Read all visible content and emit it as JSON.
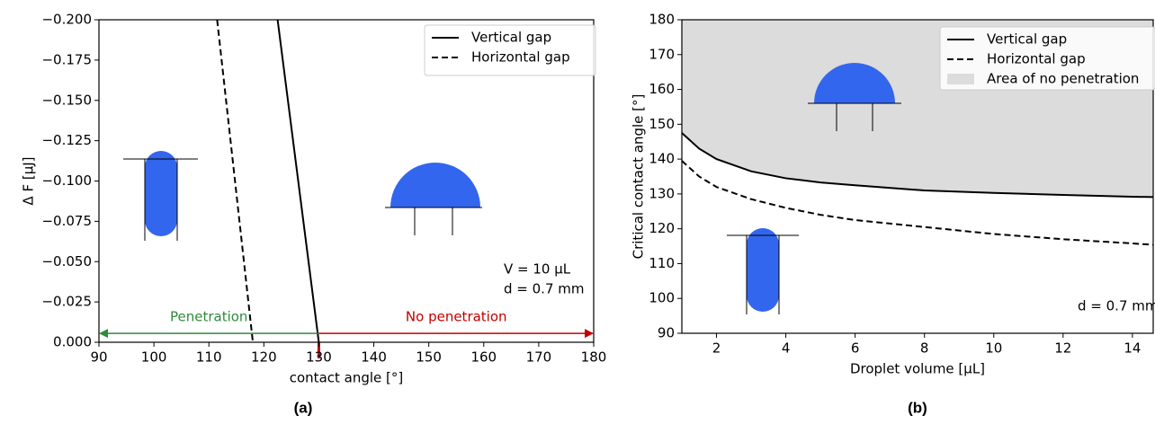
{
  "chart_data": [
    {
      "type": "line",
      "caption": "(a)",
      "xlabel": "contact angle [°]",
      "ylabel": "Δ F [μJ]",
      "xlim": [
        90,
        180
      ],
      "xticks": [
        90,
        100,
        110,
        120,
        130,
        140,
        150,
        160,
        170,
        180
      ],
      "ylim": [
        0,
        -0.2
      ],
      "yticks": [
        {
          "value": 0,
          "label": "0.000"
        },
        {
          "value": -0.025,
          "label": "−0.025"
        },
        {
          "value": -0.05,
          "label": "−0.050"
        },
        {
          "value": -0.075,
          "label": "−0.075"
        },
        {
          "value": -0.1,
          "label": "−0.100"
        },
        {
          "value": -0.125,
          "label": "−0.125"
        },
        {
          "value": -0.15,
          "label": "−0.150"
        },
        {
          "value": -0.175,
          "label": "−0.175"
        },
        {
          "value": -0.2,
          "label": "−0.200"
        }
      ],
      "series": [
        {
          "name": "Vertical gap",
          "color": "#000000",
          "dash": "solid",
          "x": [
            122.5,
            130
          ],
          "values": [
            -0.2,
            0
          ]
        },
        {
          "name": "Horizontal gap",
          "color": "#000000",
          "dash": "dashed",
          "x": [
            111.5,
            118
          ],
          "values": [
            -0.2,
            0
          ]
        }
      ],
      "arrows": [
        {
          "label": "Penetration",
          "color": "#2e8b3a",
          "from": 130,
          "to": 90,
          "y": -0.0055
        },
        {
          "label": "No penetration",
          "color": "#c00000",
          "from": 130,
          "to": 180,
          "y": -0.0055
        }
      ],
      "annotations": [
        "V = 10 μL",
        "d = 0.7 mm"
      ],
      "legend": "upper right"
    },
    {
      "type": "line",
      "caption": "(b)",
      "xlabel": "Droplet volume [μL]",
      "ylabel": "Critical contact angle [°]",
      "xlim": [
        1,
        14.6
      ],
      "xticks": [
        2,
        4,
        6,
        8,
        10,
        12,
        14
      ],
      "ylim": [
        90,
        180
      ],
      "yticks": [
        90,
        100,
        110,
        120,
        130,
        140,
        150,
        160,
        170,
        180
      ],
      "series": [
        {
          "name": "Vertical gap",
          "color": "#000000",
          "dash": "solid",
          "x": [
            1,
            1.5,
            2,
            3,
            4,
            5,
            6,
            8,
            10,
            12,
            14,
            14.6
          ],
          "values": [
            147.5,
            143,
            140,
            136.5,
            134.5,
            133.3,
            132.5,
            131,
            130.3,
            129.7,
            129.2,
            129.1
          ]
        },
        {
          "name": "Horizontal gap",
          "color": "#000000",
          "dash": "dashed",
          "x": [
            1,
            1.5,
            2,
            3,
            4,
            5,
            6,
            8,
            10,
            12,
            14,
            14.6
          ],
          "values": [
            139.5,
            135,
            132,
            128.5,
            126,
            124,
            122.5,
            120.5,
            118.5,
            117,
            115.8,
            115.4
          ]
        }
      ],
      "shaded_area": {
        "name": "Area of no penetration",
        "color": "#dcdcdc"
      },
      "annotations": [
        "d = 0.7 mm"
      ],
      "legend": "upper right"
    }
  ]
}
